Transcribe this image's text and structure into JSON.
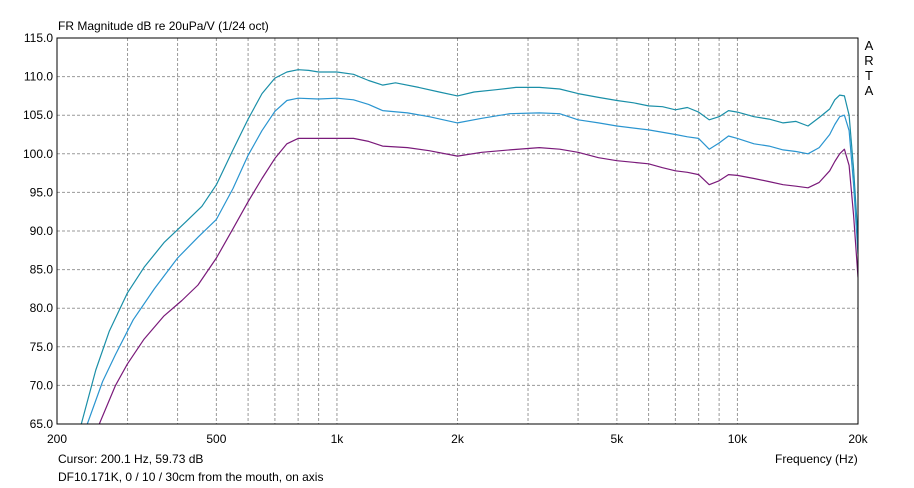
{
  "chart_data": {
    "type": "line",
    "title": "FR Magnitude dB re 20uPa/V (1/24 oct)",
    "xlabel": "Frequency (Hz)",
    "ylabel": "",
    "x_scale": "log",
    "xlim": [
      200,
      20000
    ],
    "ylim": [
      65,
      115
    ],
    "grid": true,
    "x_ticks": [
      200,
      500,
      1000,
      2000,
      5000,
      10000,
      20000
    ],
    "x_tick_labels": [
      "200",
      "500",
      "1k",
      "2k",
      "5k",
      "10k",
      "20k"
    ],
    "x_minor_ticks": [
      300,
      400,
      600,
      700,
      800,
      900,
      3000,
      4000,
      6000,
      7000,
      8000,
      9000
    ],
    "y_ticks": [
      65,
      70,
      75,
      80,
      85,
      90,
      95,
      100,
      105,
      110,
      115
    ],
    "y_tick_labels": [
      "65.0",
      "70.0",
      "75.0",
      "80.0",
      "85.0",
      "90.0",
      "95.0",
      "100.0",
      "105.0",
      "110.0",
      "115.0"
    ],
    "cursor_text": "Cursor: 200.1 Hz, 59.73 dB",
    "caption": "DF10.171K, 0 / 10 / 30cm from the mouth, on axis",
    "watermark_letters": [
      "A",
      "R",
      "T",
      "A"
    ],
    "series": [
      {
        "color": "#1a8fa8",
        "points": [
          [
            230,
            65
          ],
          [
            250,
            72
          ],
          [
            270,
            77
          ],
          [
            300,
            82
          ],
          [
            330,
            85.3
          ],
          [
            370,
            88.5
          ],
          [
            420,
            91.2
          ],
          [
            460,
            93.2
          ],
          [
            500,
            96
          ],
          [
            550,
            100.5
          ],
          [
            600,
            104.5
          ],
          [
            650,
            107.8
          ],
          [
            700,
            109.8
          ],
          [
            750,
            110.6
          ],
          [
            800,
            110.9
          ],
          [
            850,
            110.8
          ],
          [
            900,
            110.6
          ],
          [
            1000,
            110.6
          ],
          [
            1100,
            110.3
          ],
          [
            1200,
            109.5
          ],
          [
            1300,
            108.9
          ],
          [
            1400,
            109.2
          ],
          [
            1600,
            108.6
          ],
          [
            1800,
            108
          ],
          [
            2000,
            107.5
          ],
          [
            2200,
            108
          ],
          [
            2500,
            108.3
          ],
          [
            2800,
            108.6
          ],
          [
            3200,
            108.6
          ],
          [
            3600,
            108.4
          ],
          [
            4000,
            107.8
          ],
          [
            4500,
            107.3
          ],
          [
            5000,
            106.9
          ],
          [
            5500,
            106.6
          ],
          [
            6000,
            106.2
          ],
          [
            6500,
            106.1
          ],
          [
            7000,
            105.7
          ],
          [
            7500,
            106
          ],
          [
            8000,
            105.4
          ],
          [
            8500,
            104.4
          ],
          [
            9000,
            104.8
          ],
          [
            9500,
            105.6
          ],
          [
            10000,
            105.4
          ],
          [
            11000,
            104.8
          ],
          [
            12000,
            104.5
          ],
          [
            13000,
            104
          ],
          [
            14000,
            104.2
          ],
          [
            15000,
            103.6
          ],
          [
            16000,
            104.7
          ],
          [
            17000,
            105.8
          ],
          [
            17500,
            107
          ],
          [
            18000,
            107.6
          ],
          [
            18500,
            107.5
          ],
          [
            19000,
            105
          ],
          [
            19500,
            98
          ],
          [
            20000,
            89
          ]
        ]
      },
      {
        "color": "#2a95d0",
        "points": [
          [
            238,
            65
          ],
          [
            260,
            70.5
          ],
          [
            280,
            74
          ],
          [
            310,
            78.5
          ],
          [
            350,
            82.5
          ],
          [
            400,
            86.5
          ],
          [
            450,
            89.2
          ],
          [
            500,
            91.5
          ],
          [
            550,
            95.5
          ],
          [
            600,
            99.8
          ],
          [
            650,
            103
          ],
          [
            700,
            105.5
          ],
          [
            750,
            106.9
          ],
          [
            800,
            107.2
          ],
          [
            900,
            107.1
          ],
          [
            1000,
            107.2
          ],
          [
            1100,
            107
          ],
          [
            1200,
            106.4
          ],
          [
            1300,
            105.6
          ],
          [
            1500,
            105.3
          ],
          [
            1700,
            104.8
          ],
          [
            2000,
            104
          ],
          [
            2300,
            104.6
          ],
          [
            2700,
            105.2
          ],
          [
            3200,
            105.3
          ],
          [
            3600,
            105.2
          ],
          [
            4000,
            104.4
          ],
          [
            4500,
            104
          ],
          [
            5000,
            103.6
          ],
          [
            6000,
            103.1
          ],
          [
            7000,
            102.5
          ],
          [
            7500,
            102.2
          ],
          [
            8000,
            102
          ],
          [
            8500,
            100.6
          ],
          [
            9000,
            101.4
          ],
          [
            9500,
            102.3
          ],
          [
            10000,
            102
          ],
          [
            11000,
            101.3
          ],
          [
            12000,
            101
          ],
          [
            13000,
            100.5
          ],
          [
            14000,
            100.3
          ],
          [
            15000,
            100
          ],
          [
            16000,
            100.8
          ],
          [
            17000,
            102.5
          ],
          [
            17500,
            103.8
          ],
          [
            18000,
            104.8
          ],
          [
            18500,
            105
          ],
          [
            19000,
            103
          ],
          [
            19500,
            96
          ],
          [
            20000,
            87
          ]
        ]
      },
      {
        "color": "#7a1a7a",
        "points": [
          [
            255,
            65
          ],
          [
            280,
            70
          ],
          [
            300,
            72.8
          ],
          [
            330,
            76
          ],
          [
            370,
            79
          ],
          [
            410,
            81
          ],
          [
            450,
            83
          ],
          [
            500,
            86.5
          ],
          [
            550,
            90.3
          ],
          [
            600,
            93.8
          ],
          [
            650,
            96.8
          ],
          [
            700,
            99.4
          ],
          [
            750,
            101.3
          ],
          [
            800,
            102
          ],
          [
            900,
            102
          ],
          [
            1000,
            102
          ],
          [
            1100,
            102
          ],
          [
            1200,
            101.6
          ],
          [
            1300,
            101
          ],
          [
            1500,
            100.8
          ],
          [
            1700,
            100.4
          ],
          [
            2000,
            99.7
          ],
          [
            2300,
            100.2
          ],
          [
            2700,
            100.5
          ],
          [
            3200,
            100.8
          ],
          [
            3600,
            100.6
          ],
          [
            4000,
            100.2
          ],
          [
            4500,
            99.5
          ],
          [
            5000,
            99.1
          ],
          [
            6000,
            98.7
          ],
          [
            6500,
            98.2
          ],
          [
            7000,
            97.8
          ],
          [
            7500,
            97.6
          ],
          [
            8000,
            97.3
          ],
          [
            8500,
            96
          ],
          [
            9000,
            96.5
          ],
          [
            9500,
            97.3
          ],
          [
            10000,
            97.2
          ],
          [
            11000,
            96.8
          ],
          [
            12000,
            96.4
          ],
          [
            13000,
            96
          ],
          [
            14000,
            95.8
          ],
          [
            15000,
            95.6
          ],
          [
            16000,
            96.3
          ],
          [
            17000,
            97.8
          ],
          [
            17500,
            99
          ],
          [
            18000,
            100
          ],
          [
            18500,
            100.6
          ],
          [
            19000,
            98.5
          ],
          [
            19500,
            92
          ],
          [
            20000,
            84
          ]
        ]
      }
    ]
  }
}
